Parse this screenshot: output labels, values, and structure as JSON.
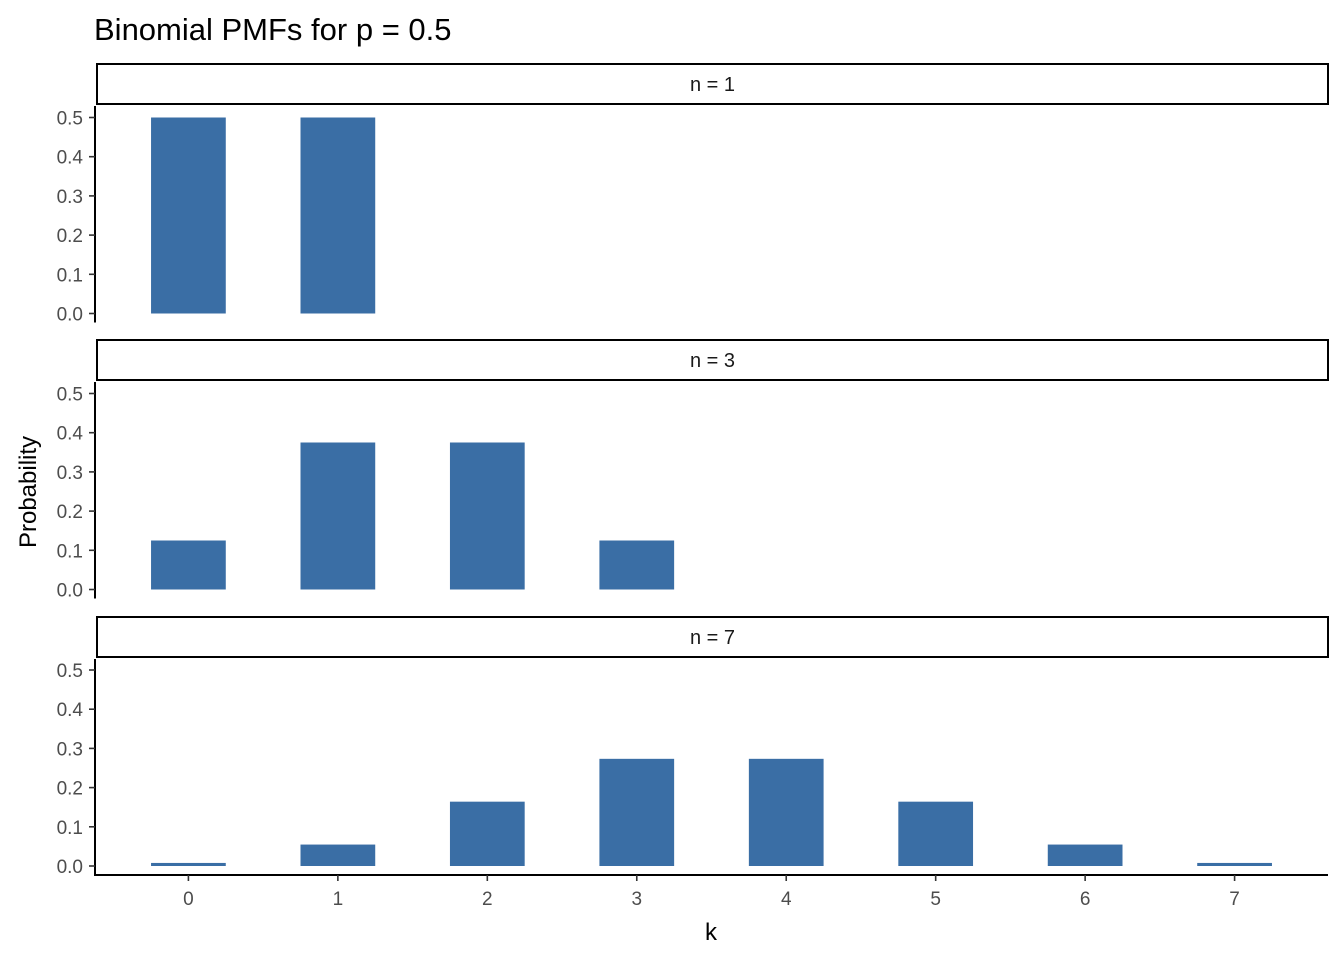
{
  "chart_data": {
    "type": "bar",
    "title": "Binomial PMFs for p = 0.5",
    "xlabel": "k",
    "ylabel": "Probability",
    "ylim": [
      0,
      0.5
    ],
    "y_ticks": [
      "0.0",
      "0.1",
      "0.2",
      "0.3",
      "0.4",
      "0.5"
    ],
    "x_ticks": [
      "0",
      "1",
      "2",
      "3",
      "4",
      "5",
      "6",
      "7"
    ],
    "grid": false,
    "bar_color": "#3A6EA5",
    "panels": [
      {
        "label": "n = 1",
        "n": 1,
        "k": [
          0,
          1
        ],
        "values": [
          0.5,
          0.5
        ]
      },
      {
        "label": "n = 3",
        "n": 3,
        "k": [
          0,
          1,
          2,
          3
        ],
        "values": [
          0.125,
          0.375,
          0.375,
          0.125
        ]
      },
      {
        "label": "n = 7",
        "n": 7,
        "k": [
          0,
          1,
          2,
          3,
          4,
          5,
          6,
          7
        ],
        "values": [
          0.0078,
          0.0547,
          0.1641,
          0.2734,
          0.2734,
          0.1641,
          0.0547,
          0.0078
        ]
      }
    ]
  }
}
